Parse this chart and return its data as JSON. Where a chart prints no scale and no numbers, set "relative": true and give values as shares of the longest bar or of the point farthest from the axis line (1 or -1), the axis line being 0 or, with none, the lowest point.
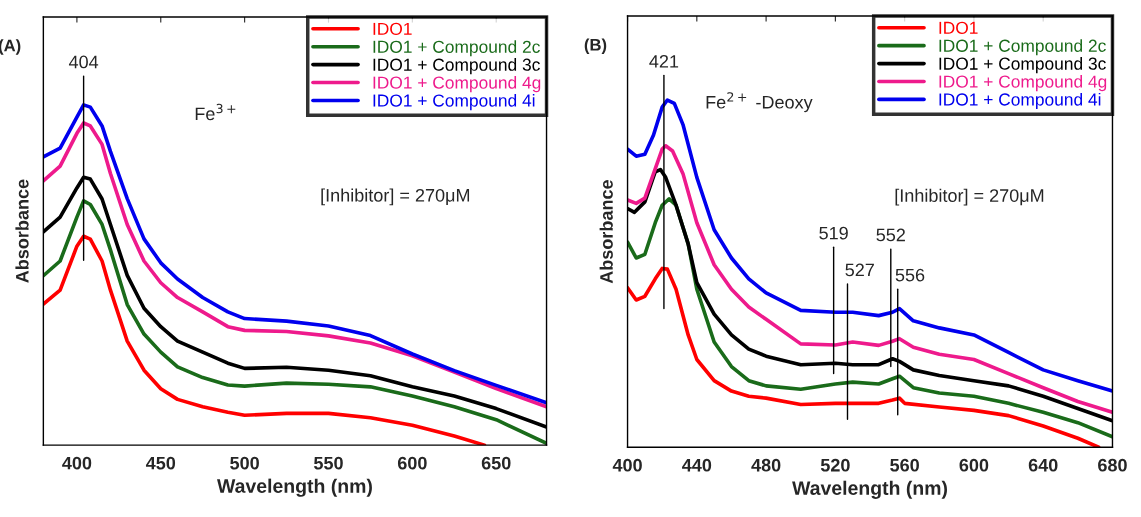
{
  "chart_data": [
    {
      "type": "line",
      "title": "(A)",
      "xlabel": "Wavelength (nm)",
      "ylabel": "Absorbance",
      "relative": true,
      "xlim": [
        380,
        680
      ],
      "xticks": [
        400,
        450,
        500,
        550,
        600,
        650
      ],
      "tick_labels": "x",
      "legend": "top right",
      "grid": false,
      "x": [
        380,
        390,
        400,
        404,
        408,
        415,
        420,
        430,
        440,
        450,
        460,
        475,
        490,
        500,
        525,
        550,
        575,
        600,
        625,
        650,
        680
      ],
      "series": [
        {
          "name": "IDO1",
          "color": "#ff0000",
          "x": [
            380,
            390,
            400,
            404,
            408,
            415,
            420,
            430,
            440,
            450,
            460,
            475,
            490,
            500,
            525,
            550,
            575,
            600,
            625,
            643
          ],
          "values": [
            0.382,
            0.42,
            0.539,
            0.566,
            0.558,
            0.499,
            0.42,
            0.282,
            0.203,
            0.153,
            0.124,
            0.104,
            0.089,
            0.081,
            0.086,
            0.086,
            0.074,
            0.054,
            0.025,
            0
          ]
        },
        {
          "name": "IDO1 + Compound 2c",
          "color": "#1a6b1a",
          "values": [
            0.459,
            0.499,
            0.618,
            0.662,
            0.652,
            0.598,
            0.529,
            0.381,
            0.301,
            0.252,
            0.212,
            0.183,
            0.163,
            0.16,
            0.168,
            0.165,
            0.158,
            0.133,
            0.104,
            0.069,
            0.005
          ]
        },
        {
          "name": "IDO1 + Compound 3c",
          "color": "#000000",
          "values": [
            0.578,
            0.618,
            0.697,
            0.726,
            0.721,
            0.667,
            0.598,
            0.46,
            0.371,
            0.321,
            0.282,
            0.252,
            0.222,
            0.208,
            0.211,
            0.203,
            0.188,
            0.158,
            0.133,
            0.099,
            0.049
          ]
        },
        {
          "name": "IDO1 + Compound 4g",
          "color": "#ee1a8c",
          "values": [
            0.716,
            0.756,
            0.845,
            0.873,
            0.865,
            0.815,
            0.736,
            0.598,
            0.499,
            0.44,
            0.4,
            0.361,
            0.321,
            0.311,
            0.308,
            0.296,
            0.277,
            0.242,
            0.198,
            0.153,
            0.104
          ]
        },
        {
          "name": "IDO1 + Compound 4i",
          "color": "#0000ee",
          "values": [
            0.781,
            0.805,
            0.889,
            0.922,
            0.916,
            0.865,
            0.796,
            0.668,
            0.559,
            0.494,
            0.45,
            0.4,
            0.361,
            0.343,
            0.336,
            0.323,
            0.297,
            0.247,
            0.202,
            0.162,
            0.115
          ]
        },
        {
          "color": "#000000",
          "x": [
            404,
            404
          ],
          "values": [
            0.501,
            1.0
          ]
        }
      ],
      "annotations": [
        {
          "text": "404",
          "x": 404,
          "y": 1.0
        },
        "Fe$^{3+}$",
        "[Inhibitor] = 270μM"
      ]
    },
    {
      "type": "line",
      "title": "(B)",
      "xlabel": "Wavelength (nm)",
      "ylabel": "Absorbance",
      "relative": true,
      "xlim": [
        400,
        680
      ],
      "xticks": [
        400,
        440,
        480,
        520,
        560,
        600,
        640,
        680
      ],
      "tick_labels": "x",
      "legend": "top right",
      "grid": false,
      "x": [
        400,
        405,
        410,
        415,
        420,
        423,
        427,
        432,
        440,
        450,
        460,
        470,
        480,
        500,
        520,
        530,
        545,
        553,
        557,
        565,
        580,
        600,
        620,
        640,
        660,
        680
      ],
      "series": [
        {
          "name": "IDO1",
          "color": "#ff0000",
          "x": [
            400,
            405,
            410,
            416,
            420,
            423,
            428,
            435,
            440,
            450,
            460,
            470,
            480,
            500,
            520,
            530,
            545,
            553,
            557,
            560,
            580,
            600,
            620,
            640,
            660,
            672
          ],
          "values": [
            0.429,
            0.396,
            0.406,
            0.453,
            0.481,
            0.479,
            0.425,
            0.302,
            0.236,
            0.179,
            0.151,
            0.137,
            0.132,
            0.115,
            0.118,
            0.118,
            0.118,
            0.127,
            0.132,
            0.118,
            0.108,
            0.099,
            0.085,
            0.057,
            0.024,
            0
          ]
        },
        {
          "name": "IDO1 + Compound 2c",
          "color": "#1a6b1a",
          "x": [
            400,
            405,
            410,
            416,
            420,
            424,
            428,
            435,
            440,
            450,
            460,
            470,
            480,
            500,
            520,
            530,
            545,
            553,
            557,
            565,
            580,
            600,
            620,
            640,
            660,
            680
          ],
          "values": [
            0.552,
            0.509,
            0.519,
            0.604,
            0.651,
            0.668,
            0.651,
            0.547,
            0.425,
            0.283,
            0.217,
            0.179,
            0.165,
            0.156,
            0.17,
            0.175,
            0.17,
            0.184,
            0.191,
            0.16,
            0.146,
            0.137,
            0.118,
            0.094,
            0.066,
            0.028
          ]
        },
        {
          "name": "IDO1 + Compound 3c",
          "color": "#000000",
          "x": [
            400,
            404,
            410,
            416,
            419,
            422,
            428,
            435,
            440,
            450,
            460,
            470,
            480,
            500,
            520,
            530,
            545,
            553,
            557,
            565,
            580,
            600,
            620,
            640,
            660,
            680
          ],
          "values": [
            0.642,
            0.632,
            0.66,
            0.741,
            0.747,
            0.726,
            0.651,
            0.547,
            0.443,
            0.358,
            0.302,
            0.264,
            0.245,
            0.222,
            0.226,
            0.222,
            0.222,
            0.238,
            0.231,
            0.208,
            0.193,
            0.179,
            0.165,
            0.137,
            0.104,
            0.071
          ]
        },
        {
          "name": "IDO1 + Compound 4g",
          "color": "#ee1a8c",
          "x": [
            400,
            405,
            410,
            415,
            420,
            422,
            426,
            432,
            440,
            450,
            460,
            470,
            480,
            500,
            520,
            530,
            545,
            553,
            557,
            565,
            580,
            600,
            620,
            640,
            660,
            680
          ],
          "values": [
            0.665,
            0.656,
            0.67,
            0.736,
            0.802,
            0.811,
            0.797,
            0.736,
            0.604,
            0.491,
            0.425,
            0.377,
            0.344,
            0.278,
            0.275,
            0.283,
            0.274,
            0.285,
            0.292,
            0.269,
            0.25,
            0.236,
            0.198,
            0.16,
            0.123,
            0.094
          ]
        },
        {
          "name": "IDO1 + Compound 4i",
          "color": "#0000ee",
          "values": [
            0.802,
            0.783,
            0.788,
            0.84,
            0.915,
            0.934,
            0.925,
            0.868,
            0.726,
            0.585,
            0.509,
            0.453,
            0.415,
            0.368,
            0.363,
            0.363,
            0.354,
            0.363,
            0.373,
            0.34,
            0.321,
            0.302,
            0.255,
            0.208,
            0.179,
            0.151
          ]
        },
        {
          "color": "#000000",
          "x": [
            421,
            421
          ],
          "values": [
            0.373,
            1.0
          ]
        },
        {
          "color": "#000000",
          "x": [
            519,
            519
          ],
          "values": [
            0.198,
            0.538
          ]
        },
        {
          "color": "#000000",
          "x": [
            527,
            527
          ],
          "values": [
            0.075,
            0.439
          ]
        },
        {
          "color": "#000000",
          "x": [
            552,
            552
          ],
          "values": [
            0.217,
            0.533
          ]
        },
        {
          "color": "#000000",
          "x": [
            556,
            556
          ],
          "values": [
            0.087,
            0.425
          ]
        }
      ],
      "annotations": [
        {
          "text": "421",
          "x": 421,
          "y": 1.0
        },
        {
          "text": "519",
          "x": 519,
          "y": 0.538
        },
        {
          "text": "527",
          "x": 527,
          "y": 0.439
        },
        {
          "text": "552",
          "x": 552,
          "y": 0.533
        },
        {
          "text": "556",
          "x": 556,
          "y": 0.425
        },
        "Fe$^{2+}$ -Deoxy",
        "[Inhibitor] = 270μM"
      ]
    }
  ]
}
